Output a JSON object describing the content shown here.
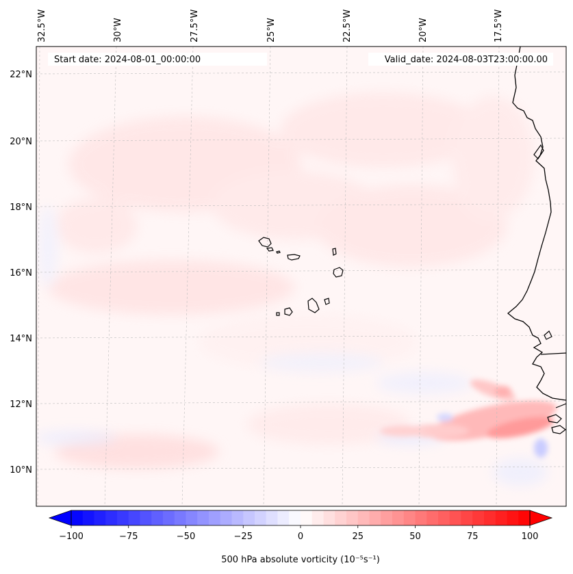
{
  "map": {
    "start_label": "Start date: 2024-08-01_00:00:00",
    "valid_label": "Valid_date: 2024-08-03T23:00:00.00",
    "lon_labels": [
      "32.5°W",
      "30°W",
      "27.5°W",
      "25°W",
      "22.5°W",
      "20°W",
      "17.5°W"
    ],
    "lat_labels": [
      "22°N",
      "20°N",
      "18°N",
      "16°N",
      "14°N",
      "12°N",
      "10°N"
    ],
    "region": "Cape Verde Islands and West African coast"
  },
  "colorbar": {
    "ticks": [
      "−100",
      "−75",
      "−50",
      "−25",
      "0",
      "25",
      "50",
      "75",
      "100"
    ],
    "label": "500 hPa absolute vorticity (10⁻⁵s⁻¹)",
    "min_color": "#0000ff",
    "mid_color": "#ffffff",
    "max_color": "#ff0000"
  }
}
